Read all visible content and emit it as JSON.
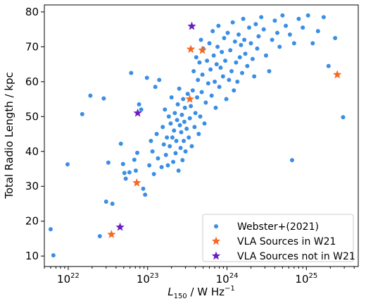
{
  "chart_data": {
    "type": "scatter",
    "xlabel": "L_150 / W Hz^-1",
    "ylabel": "Total Radio Length / kpc",
    "xscale": "log",
    "xlim": [
      5e+21,
      4.5e+25
    ],
    "ylim": [
      7,
      82
    ],
    "x_ticks": [
      {
        "value": 1e+22,
        "label": "1022"
      },
      {
        "value": 1e+23,
        "label": "1023"
      },
      {
        "value": 1e+24,
        "label": "1024"
      },
      {
        "value": 1e+25,
        "label": "1025"
      }
    ],
    "y_ticks": [
      10,
      20,
      30,
      40,
      50,
      60,
      70,
      80
    ],
    "grid": false,
    "legend_position": "lower-right",
    "colors": {
      "webster": "#3a8ee6",
      "vla_in": "#f46a25",
      "vla_not": "#6a1fc2"
    },
    "series": [
      {
        "name": "Webster+(2021)",
        "marker": "circle",
        "points": [
          [
            6e+21,
            17.7
          ],
          [
            6.5e+21,
            10.2
          ],
          [
            9.8e+21,
            36.3
          ],
          [
            1.5e+22,
            50.7
          ],
          [
            1.9e+22,
            56
          ],
          [
            2.5e+22,
            15.7
          ],
          [
            2.8e+22,
            55.2
          ],
          [
            3e+22,
            25.6
          ],
          [
            3.2e+22,
            36.8
          ],
          [
            3.6e+22,
            25
          ],
          [
            4.6e+22,
            42.2
          ],
          [
            4.9e+22,
            36.4
          ],
          [
            5.1e+22,
            33.8
          ],
          [
            5.3e+22,
            32.2
          ],
          [
            5.9e+22,
            34
          ],
          [
            6.2e+22,
            62.5
          ],
          [
            6.8e+22,
            37.6
          ],
          [
            7.1e+22,
            34.5
          ],
          [
            7.4e+22,
            39.6
          ],
          [
            7.8e+22,
            53.5
          ],
          [
            8.3e+22,
            52
          ],
          [
            8.8e+22,
            29.3
          ],
          [
            9.3e+22,
            27.6
          ],
          [
            9.8e+22,
            61.1
          ],
          [
            1.05e+23,
            36
          ],
          [
            1.1e+23,
            43
          ],
          [
            1.15e+23,
            40
          ],
          [
            1.2e+23,
            33.5
          ],
          [
            1.25e+23,
            58.5
          ],
          [
            1.3e+23,
            45
          ],
          [
            1.35e+23,
            38
          ],
          [
            1.4e+23,
            60.5
          ],
          [
            1.5e+23,
            35.5
          ],
          [
            1.55e+23,
            47
          ],
          [
            1.6e+23,
            42
          ],
          [
            1.65e+23,
            52
          ],
          [
            1.7e+23,
            39
          ],
          [
            1.75e+23,
            44
          ],
          [
            1.8e+23,
            36
          ],
          [
            1.85e+23,
            50
          ],
          [
            1.9e+23,
            41.5
          ],
          [
            1.95e+23,
            48
          ],
          [
            2e+23,
            55.5
          ],
          [
            2.05e+23,
            44
          ],
          [
            2.1e+23,
            37
          ],
          [
            2.15e+23,
            46
          ],
          [
            2.2e+23,
            51
          ],
          [
            2.25e+23,
            39.5
          ],
          [
            2.3e+23,
            43
          ],
          [
            2.35e+23,
            49
          ],
          [
            2.4e+23,
            53.5
          ],
          [
            2.45e+23,
            34.5
          ],
          [
            2.5e+23,
            58
          ],
          [
            2.55e+23,
            47.5
          ],
          [
            2.6e+23,
            41
          ],
          [
            2.65e+23,
            45.5
          ],
          [
            2.7e+23,
            50.5
          ],
          [
            2.75e+23,
            37.5
          ],
          [
            2.8e+23,
            55
          ],
          [
            2.85e+23,
            43
          ],
          [
            2.9e+23,
            48.5
          ],
          [
            2.95e+23,
            52.5
          ],
          [
            3e+23,
            40
          ],
          [
            3.1e+23,
            46.5
          ],
          [
            3.2e+23,
            56.5
          ],
          [
            3.3e+23,
            44
          ],
          [
            3.4e+23,
            49.5
          ],
          [
            3.5e+23,
            53
          ],
          [
            3.6e+23,
            41.5
          ],
          [
            3.7e+23,
            57.5
          ],
          [
            3.8e+23,
            63
          ],
          [
            3.9e+23,
            47
          ],
          [
            4e+23,
            51
          ],
          [
            4.1e+23,
            67
          ],
          [
            4.2e+23,
            55.5
          ],
          [
            4.3e+23,
            60.5
          ],
          [
            4.4e+23,
            45
          ],
          [
            4.5e+23,
            65.5
          ],
          [
            4.6e+23,
            50
          ],
          [
            4.7e+23,
            72
          ],
          [
            4.8e+23,
            57
          ],
          [
            4.9e+23,
            62
          ],
          [
            5e+23,
            69.5
          ],
          [
            5.2e+23,
            48
          ],
          [
            5.4e+23,
            54
          ],
          [
            5.6e+23,
            66
          ],
          [
            5.8e+23,
            59.5
          ],
          [
            6e+23,
            71
          ],
          [
            6.2e+23,
            63.5
          ],
          [
            6.4e+23,
            56
          ],
          [
            6.6e+23,
            74.5
          ],
          [
            6.8e+23,
            67.5
          ],
          [
            7e+23,
            60
          ],
          [
            7.2e+23,
            52.5
          ],
          [
            7.4e+23,
            65
          ],
          [
            7.6e+23,
            70
          ],
          [
            7.8e+23,
            76
          ],
          [
            8e+23,
            58.5
          ],
          [
            8.3e+23,
            64
          ],
          [
            8.6e+23,
            68.5
          ],
          [
            8.9e+23,
            61.5
          ],
          [
            9.2e+23,
            72.5
          ],
          [
            9.5e+23,
            66
          ],
          [
            9.8e+23,
            55
          ],
          [
            1.02e+24,
            74
          ],
          [
            1.06e+24,
            60.5
          ],
          [
            1.1e+24,
            69
          ],
          [
            1.14e+24,
            63
          ],
          [
            1.18e+24,
            77
          ],
          [
            1.22e+24,
            57.5
          ],
          [
            1.26e+24,
            71.5
          ],
          [
            1.3e+24,
            65.5
          ],
          [
            1.35e+24,
            60
          ],
          [
            1.4e+24,
            73.5
          ],
          [
            1.45e+24,
            67
          ],
          [
            1.5e+24,
            70.5
          ],
          [
            1.55e+24,
            62.5
          ],
          [
            1.6e+24,
            78
          ],
          [
            1.65e+24,
            72
          ],
          [
            1.7e+24,
            68
          ],
          [
            1.8e+24,
            64.5
          ],
          [
            1.9e+24,
            75.5
          ],
          [
            2e+24,
            71
          ],
          [
            2.1e+24,
            66.5
          ],
          [
            2.2e+24,
            61.5
          ],
          [
            2.3e+24,
            76.5
          ],
          [
            2.4e+24,
            69.5
          ],
          [
            2.5e+24,
            73
          ],
          [
            2.7e+24,
            78.5
          ],
          [
            2.9e+24,
            75
          ],
          [
            3.1e+24,
            67.5
          ],
          [
            3.4e+24,
            63
          ],
          [
            3.7e+24,
            72
          ],
          [
            4e+24,
            77.5
          ],
          [
            4.3e+24,
            74
          ],
          [
            4.6e+24,
            70
          ],
          [
            5e+24,
            79
          ],
          [
            5.5e+24,
            76
          ],
          [
            6.2e+24,
            73.5
          ],
          [
            6.6e+24,
            37.5
          ],
          [
            7e+24,
            71
          ],
          [
            8e+24,
            78
          ],
          [
            9e+24,
            75.5
          ],
          [
            1.05e+25,
            79
          ],
          [
            1.2e+25,
            71
          ],
          [
            1.4e+25,
            74.5
          ],
          [
            1.65e+25,
            78.5
          ],
          [
            1.9e+25,
            64.5
          ],
          [
            2.3e+25,
            72.5
          ],
          [
            2.9e+25,
            49.8
          ]
        ]
      },
      {
        "name": "VLA Sources in W21",
        "marker": "star",
        "points": [
          [
            3.5e+22,
            16.2
          ],
          [
            7.3e+22,
            31
          ],
          [
            3.4e+23,
            55
          ],
          [
            3.5e+23,
            69.3
          ],
          [
            4.9e+23,
            69
          ],
          [
            2.45e+25,
            62
          ]
        ]
      },
      {
        "name": "VLA Sources not in W21",
        "marker": "star",
        "points": [
          [
            4.5e+22,
            18.3
          ],
          [
            7.5e+22,
            51
          ],
          [
            3.6e+23,
            75.9
          ]
        ]
      }
    ]
  }
}
